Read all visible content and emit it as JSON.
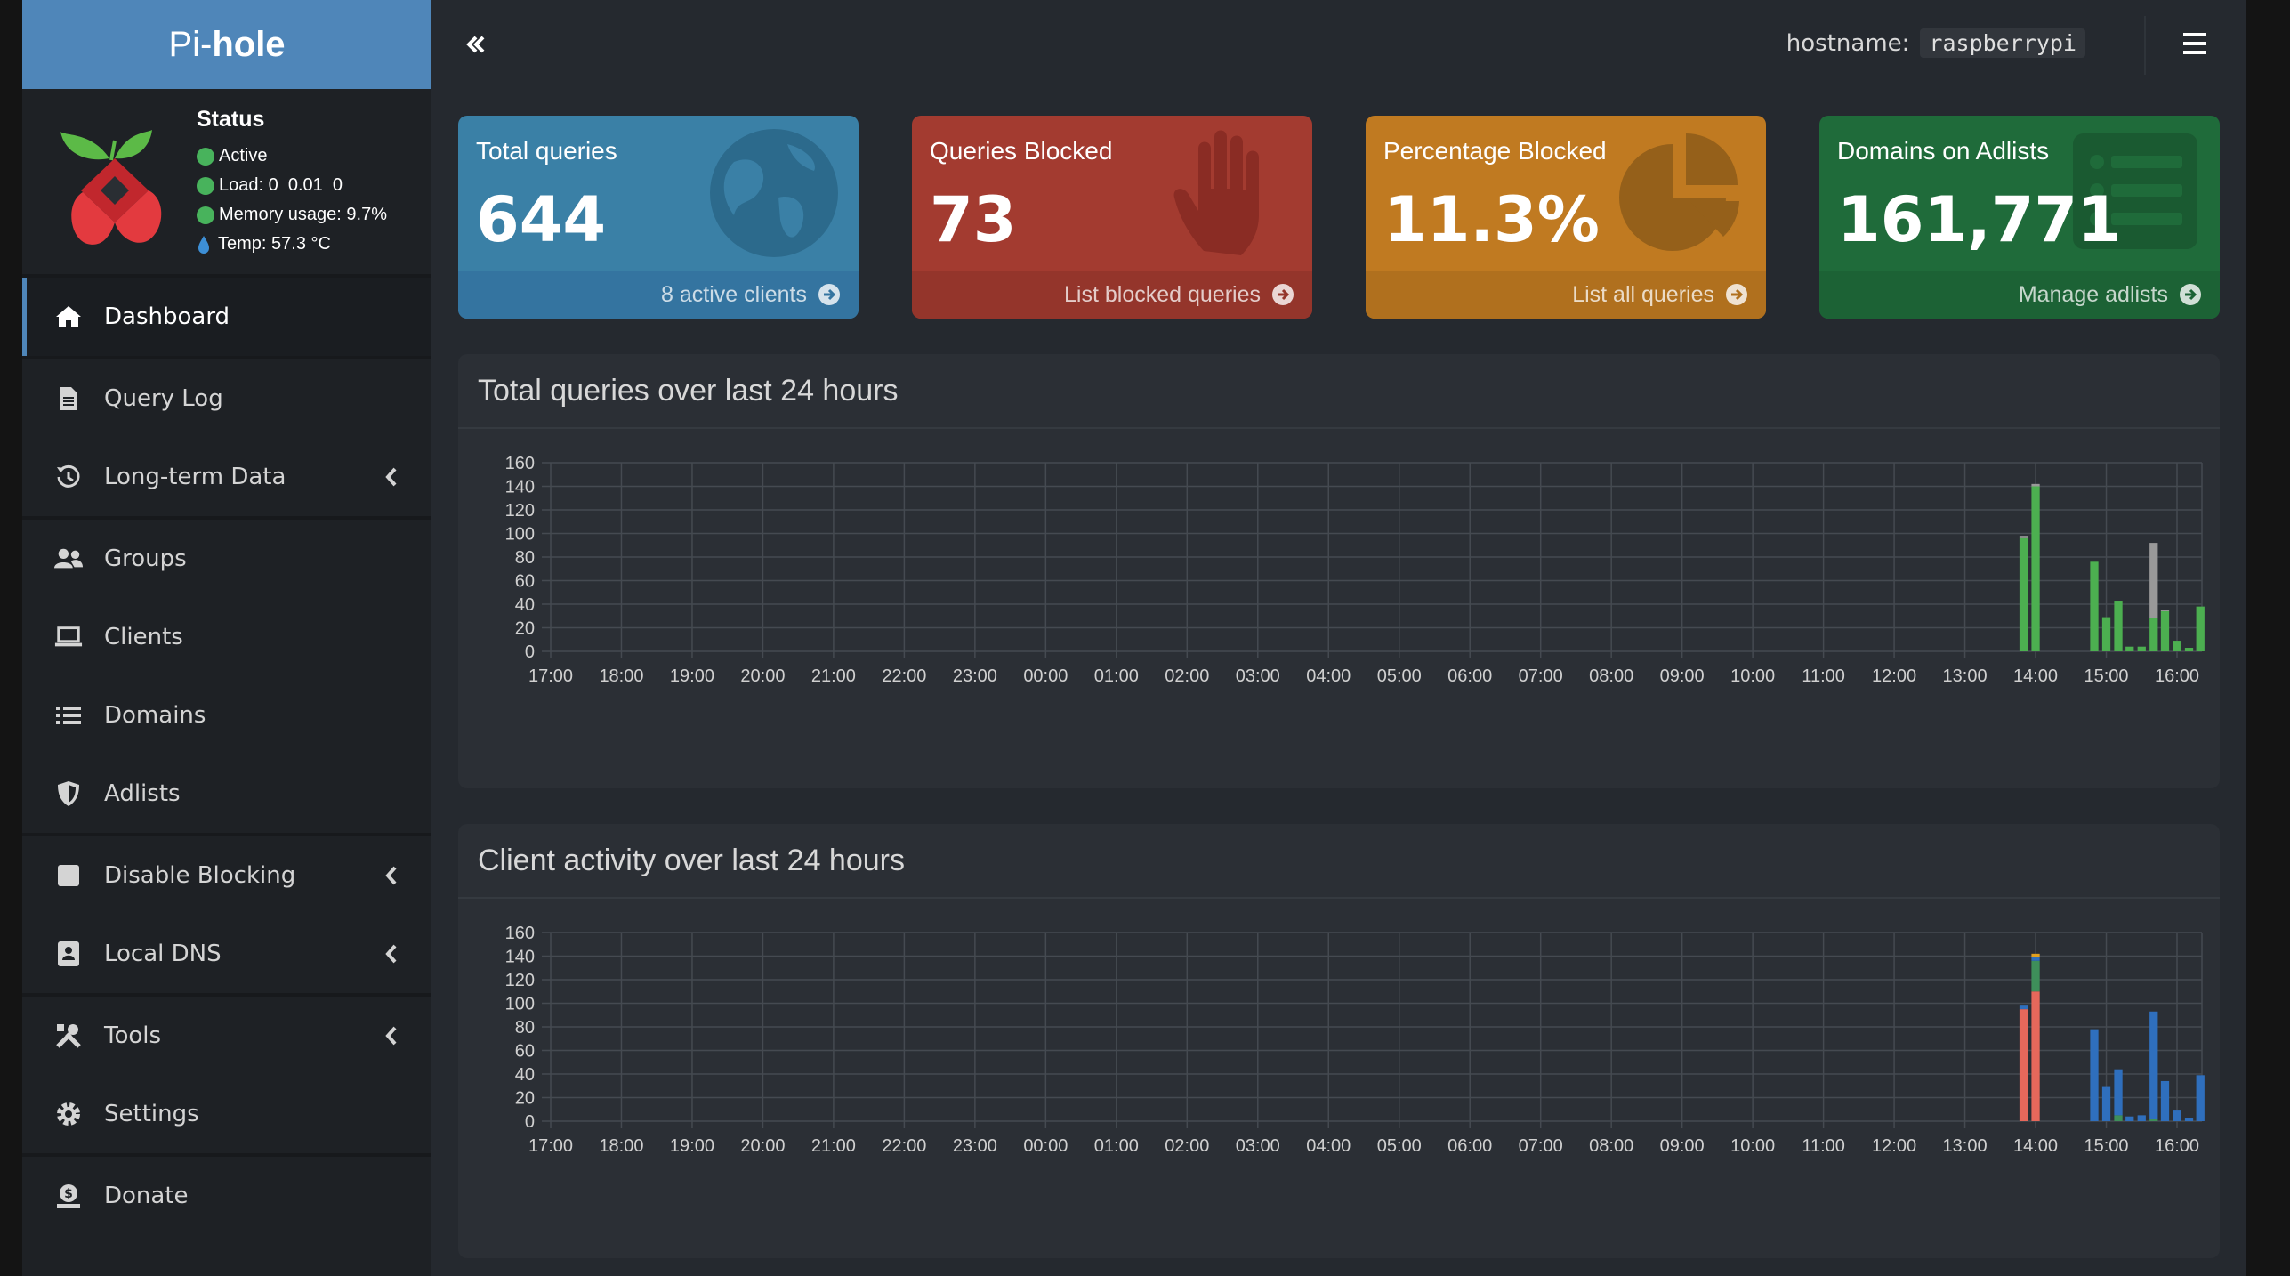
{
  "app": {
    "brand_light": "Pi-",
    "brand_bold": "hole"
  },
  "status": {
    "title": "Status",
    "active": "Active",
    "load_label": "Load:",
    "load": "0  0.01  0",
    "memory_label": "Memory usage:",
    "memory": "9.7%",
    "temp_label": "Temp:",
    "temp": "57.3 °C"
  },
  "sidebar": {
    "items": [
      {
        "label": "Dashboard",
        "icon": "home-icon"
      },
      {
        "label": "Query Log",
        "icon": "file-icon"
      },
      {
        "label": "Long-term Data",
        "icon": "history-icon"
      },
      {
        "label": "Groups",
        "icon": "users-icon"
      },
      {
        "label": "Clients",
        "icon": "laptop-icon"
      },
      {
        "label": "Domains",
        "icon": "list-icon"
      },
      {
        "label": "Adlists",
        "icon": "shield-icon"
      },
      {
        "label": "Disable Blocking",
        "icon": "stop-icon"
      },
      {
        "label": "Local DNS",
        "icon": "address-book-icon"
      },
      {
        "label": "Tools",
        "icon": "tools-icon"
      },
      {
        "label": "Settings",
        "icon": "gear-icon"
      },
      {
        "label": "Donate",
        "icon": "donate-icon"
      }
    ]
  },
  "topbar": {
    "hostname_label": "hostname:",
    "hostname": "raspberrypi"
  },
  "stats": [
    {
      "label": "Total queries",
      "value": "644",
      "footer": "8 active clients",
      "color": "#3a80a6",
      "footer_color": "#3474a0"
    },
    {
      "label": "Queries Blocked",
      "value": "73",
      "footer": "List blocked queries",
      "color": "#a33b30",
      "footer_color": "#94352b"
    },
    {
      "label": "Percentage Blocked",
      "value": "11.3%",
      "footer": "List all queries",
      "color": "#c07a21",
      "footer_color": "#b0701e"
    },
    {
      "label": "Domains on Adlists",
      "value": "161,771",
      "footer": "Manage adlists",
      "color": "#1f6b3a",
      "footer_color": "#1c6235"
    }
  ],
  "panels": {
    "queries_title": "Total queries over last 24 hours",
    "clients_title": "Client activity over last 24 hours"
  },
  "chart_data": [
    {
      "type": "bar",
      "title": "Total queries over last 24 hours",
      "x_ticks": [
        "17:00",
        "18:00",
        "19:00",
        "20:00",
        "21:00",
        "22:00",
        "23:00",
        "00:00",
        "01:00",
        "02:00",
        "03:00",
        "04:00",
        "05:00",
        "06:00",
        "07:00",
        "08:00",
        "09:00",
        "10:00",
        "11:00",
        "12:00",
        "13:00",
        "14:00",
        "15:00",
        "16:00"
      ],
      "ylim": [
        0,
        160
      ],
      "y_ticks": [
        0,
        20,
        40,
        60,
        80,
        100,
        120,
        140,
        160
      ],
      "stacked": true,
      "series": [
        {
          "color": "#4caf50",
          "points": [
            {
              "t": 13.83,
              "v": 96
            },
            {
              "t": 14.0,
              "v": 140
            },
            {
              "t": 14.83,
              "v": 76
            },
            {
              "t": 15.0,
              "v": 29
            },
            {
              "t": 15.17,
              "v": 43
            },
            {
              "t": 15.33,
              "v": 4
            },
            {
              "t": 15.5,
              "v": 4
            },
            {
              "t": 15.67,
              "v": 28
            },
            {
              "t": 15.83,
              "v": 34
            },
            {
              "t": 16.0,
              "v": 9
            },
            {
              "t": 16.17,
              "v": 3
            },
            {
              "t": 16.33,
              "v": 38
            }
          ]
        },
        {
          "color": "#999999",
          "points": [
            {
              "t": 13.83,
              "v": 2
            },
            {
              "t": 14.0,
              "v": 2
            },
            {
              "t": 15.67,
              "v": 64
            },
            {
              "t": 15.83,
              "v": 1
            }
          ]
        }
      ]
    },
    {
      "type": "bar",
      "title": "Client activity over last 24 hours",
      "x_ticks": [
        "17:00",
        "18:00",
        "19:00",
        "20:00",
        "21:00",
        "22:00",
        "23:00",
        "00:00",
        "01:00",
        "02:00",
        "03:00",
        "04:00",
        "05:00",
        "06:00",
        "07:00",
        "08:00",
        "09:00",
        "10:00",
        "11:00",
        "12:00",
        "13:00",
        "14:00",
        "15:00",
        "16:00"
      ],
      "ylim": [
        0,
        160
      ],
      "y_ticks": [
        0,
        20,
        40,
        60,
        80,
        100,
        120,
        140,
        160
      ],
      "stacked": true,
      "series": [
        {
          "color": "#e6685b",
          "points": [
            {
              "t": 13.83,
              "v": 95
            },
            {
              "t": 14.0,
              "v": 110
            }
          ]
        },
        {
          "color": "#3e8f5a",
          "points": [
            {
              "t": 14.0,
              "v": 26
            },
            {
              "t": 15.17,
              "v": 5
            },
            {
              "t": 15.67,
              "v": 2
            }
          ]
        },
        {
          "color": "#2f6fbd",
          "points": [
            {
              "t": 13.83,
              "v": 3
            },
            {
              "t": 14.0,
              "v": 3
            },
            {
              "t": 14.83,
              "v": 78
            },
            {
              "t": 15.0,
              "v": 29
            },
            {
              "t": 15.17,
              "v": 39
            },
            {
              "t": 15.33,
              "v": 4
            },
            {
              "t": 15.5,
              "v": 5
            },
            {
              "t": 15.67,
              "v": 91
            },
            {
              "t": 15.83,
              "v": 34
            },
            {
              "t": 16.0,
              "v": 9
            },
            {
              "t": 16.17,
              "v": 3
            },
            {
              "t": 16.33,
              "v": 39
            }
          ]
        },
        {
          "color": "#e0a020",
          "points": [
            {
              "t": 14.0,
              "v": 3
            }
          ]
        }
      ]
    }
  ]
}
